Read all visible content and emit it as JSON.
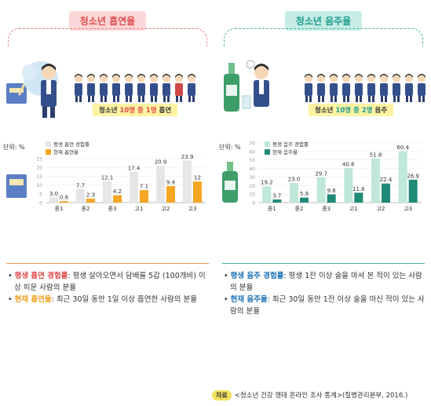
{
  "smoking": {
    "title": "청소년 흡연율",
    "caption": {
      "prefix": "청소년 ",
      "highlight": "10명 중 1명",
      "suffix": " 흡연"
    },
    "definitions": [
      {
        "term": "평생 흡연 경험률",
        "text": ": 평생 살아오면서 담배를 5갑 (100개비) 이상 피운 사람의 분율"
      },
      {
        "term": "현재 흡연율",
        "text": ": 최근 30일 동안 1일 이상 흡연한 사람의 분율"
      }
    ]
  },
  "drinking": {
    "title": "청소년 음주율",
    "caption": {
      "prefix": "청소년 ",
      "highlight": "10명 중 2명",
      "suffix": " 음주"
    },
    "definitions": [
      {
        "term": "평생 음주 경험률",
        "text": ": 평생 1잔 이상 술을 마셔 본 적이 있는 사람의 분율"
      },
      {
        "term": "현재 음주율",
        "text": ": 최근 30일 동안 1잔 이상 술을 마신 적이 있는 사람의 분율"
      }
    ]
  },
  "source": {
    "tag": "자료",
    "text": "<청소년 건강 행태 온라인 조사 통계>(질병관리본부, 2016.)"
  },
  "chart_data": [
    {
      "type": "bar",
      "ylabel": "단위: %",
      "categories": [
        "중1",
        "중2",
        "중3",
        "고1",
        "고2",
        "고3"
      ],
      "ylim": [
        0,
        25
      ],
      "yticks": [
        0,
        5,
        10,
        15,
        20,
        25
      ],
      "legend": "top-left",
      "series": [
        {
          "name": "평생 흡연 경험률",
          "color": "#e6e6e6",
          "values": [
            3.0,
            7.7,
            12.1,
            17.4,
            20.9,
            23.9
          ]
        },
        {
          "name": "현재 흡연율",
          "color": "#f5a623",
          "values": [
            0.8,
            2.3,
            4.2,
            7.1,
            9.4,
            12
          ]
        }
      ]
    },
    {
      "type": "bar",
      "ylabel": "단위: %",
      "categories": [
        "중1",
        "중2",
        "중3",
        "고1",
        "고2",
        "고3"
      ],
      "ylim": [
        0,
        70
      ],
      "yticks": [
        0,
        10,
        20,
        30,
        40,
        50,
        60,
        70
      ],
      "legend": "top-left",
      "series": [
        {
          "name": "평생 음주 경험률",
          "color": "#bfe8d8",
          "values": [
            19.2,
            23.0,
            29.7,
            40.6,
            51.8,
            60.4
          ]
        },
        {
          "name": "현재 음주율",
          "color": "#1f8a78",
          "values": [
            3.7,
            5.9,
            9.6,
            11.6,
            22.4,
            26.9
          ]
        }
      ]
    }
  ]
}
